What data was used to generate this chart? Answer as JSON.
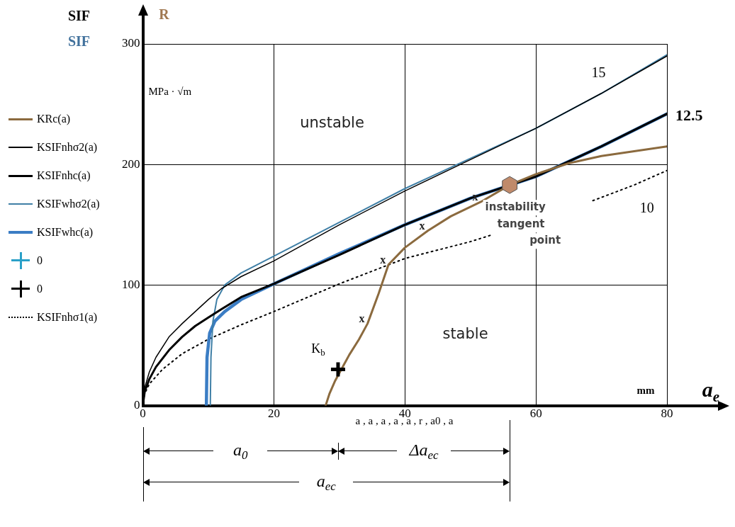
{
  "chart_data": {
    "type": "line",
    "ylabel": "SIF",
    "xlabel": "a$_{e}$",
    "xlim": [
      0,
      80
    ],
    "ylim": [
      0,
      300
    ],
    "xticks": [
      0,
      20,
      40,
      60,
      80
    ],
    "yticks": [
      0,
      100,
      200,
      300
    ],
    "grid": true,
    "legend": "left",
    "marker": "none",
    "series": [
      {
        "name": "KRc(a)",
        "color": "#8b6a3e",
        "x": [
          27.9,
          28.5,
          29.3,
          30.3,
          31.5,
          33,
          34.3,
          36,
          37.5,
          40,
          43.5,
          47,
          51.6,
          56,
          60,
          65,
          70,
          75,
          80
        ],
        "values": [
          0,
          10,
          20,
          30,
          42,
          55,
          68,
          93,
          117,
          131,
          145,
          157,
          169,
          183,
          192,
          201,
          207,
          211,
          215
        ]
      },
      {
        "name": "KSIFnhσ2(a)",
        "color": "#000000",
        "x": [
          0,
          0.3,
          1,
          2,
          4,
          6,
          8,
          10,
          12,
          15,
          20,
          30,
          40,
          50,
          60,
          70,
          80
        ],
        "values": [
          0,
          15,
          28,
          40,
          57,
          68,
          78,
          88,
          97,
          107,
          120,
          150,
          178,
          204,
          230,
          259,
          290
        ]
      },
      {
        "name": "KSIFnhc(a)",
        "color": "#000000",
        "x": [
          0,
          0.3,
          1,
          2,
          4,
          6,
          8,
          10,
          12,
          15,
          20,
          30,
          40,
          50,
          60,
          70,
          80
        ],
        "values": [
          0,
          12,
          22,
          32,
          46,
          57,
          66,
          73,
          80,
          90,
          101,
          125,
          150,
          172,
          190,
          215,
          242
        ]
      },
      {
        "name": "KSIFwhσ2(a)",
        "color": "#3f7fa6",
        "x": [
          10.3,
          10.4,
          10.7,
          11.3,
          12.5,
          15,
          20,
          30,
          40,
          50,
          60,
          70,
          80
        ],
        "values": [
          0,
          40,
          70,
          88,
          100,
          110,
          124,
          152,
          180,
          205,
          230,
          259,
          291
        ]
      },
      {
        "name": "KSIFwhc(a)",
        "color": "#3b7dc4",
        "x": [
          9.7,
          9.8,
          10.2,
          11,
          12.5,
          15,
          20,
          30,
          40,
          50,
          60,
          70,
          80
        ],
        "values": [
          0,
          40,
          60,
          70,
          78,
          88,
          101,
          126,
          150,
          172,
          190,
          215,
          242
        ]
      },
      {
        "name": "0",
        "type": "scatter",
        "marker": "cross",
        "color": "#2aa0c8"
      },
      {
        "name": "0",
        "type": "scatter",
        "marker": "cross",
        "color": "#000000",
        "x": [
          29.8
        ],
        "values": [
          30
        ]
      },
      {
        "name": "KSIFnhσ1(a)",
        "color": "#000000",
        "line_style": "dotted",
        "x": [
          0,
          0.3,
          1,
          3,
          6,
          10,
          15,
          20,
          30,
          40,
          50,
          53.5,
          60,
          68.7,
          75,
          80
        ],
        "values": [
          0,
          10,
          18,
          30,
          43,
          55,
          67,
          78,
          101,
          122,
          136,
          142,
          null,
          170,
          183,
          195
        ]
      }
    ],
    "annotations": [
      "SIF",
      "R",
      "MPa · √m",
      "unstable",
      "stable",
      "mm",
      "a , a , a , a , a , r , a0 , a",
      "a$_{0}$",
      "Δa$_{ec}$",
      "a$_{ec}$",
      {
        "text": "15",
        "x": 70,
        "y": 259
      },
      {
        "text": "12.5",
        "x": 80,
        "y": 242
      },
      {
        "text": "10",
        "x": 75,
        "y": 183
      },
      {
        "text": "K$_{b}$",
        "x": 29.8,
        "y": 30
      },
      {
        "text": "instability tangent point",
        "x": 56,
        "y": 183
      },
      {
        "text": "x",
        "x": 34.3,
        "y": 68
      },
      {
        "text": "x",
        "x": 37.5,
        "y": 117
      },
      {
        "text": "x",
        "x": 43.5,
        "y": 145
      },
      {
        "text": "x",
        "x": 51.6,
        "y": 169
      }
    ]
  }
}
